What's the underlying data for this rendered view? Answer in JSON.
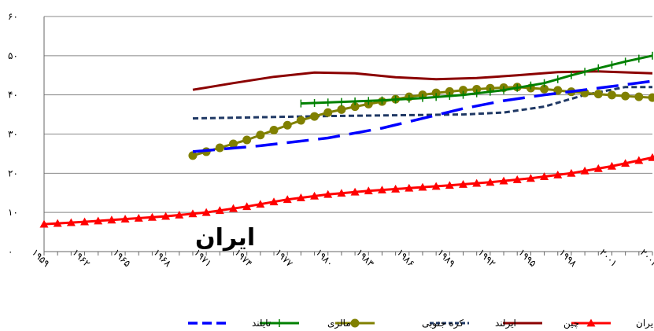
{
  "chart_data": {
    "type": "line",
    "x_start": 1959,
    "x_end": 2004,
    "ylim": [
      0,
      60
    ],
    "y_ticks": [
      0,
      10,
      20,
      30,
      40,
      50,
      60
    ],
    "y_tick_labels": [
      "۰",
      "۱۰",
      "۲۰",
      "۳۰",
      "۴۰",
      "۵۰",
      "۶۰"
    ],
    "x_tick_labels": [
      "۱۹۵۹",
      "۱۹۶۲",
      "۱۹۶۵",
      "۱۹۶۸",
      "۱۹۷۱",
      "۱۹۷۴",
      "۱۹۷۷",
      "۱۹۸۰",
      "۱۹۸۳",
      "۱۹۸۶",
      "۱۹۸۹",
      "۱۹۹۲",
      "۱۹۹۵",
      "۱۹۹۸",
      "۲۰۰۱",
      "۲۰۰۴"
    ],
    "x_tick_values": [
      1959,
      1962,
      1965,
      1968,
      1971,
      1974,
      1977,
      1980,
      1983,
      1986,
      1989,
      1992,
      1995,
      1998,
      2001,
      2004
    ],
    "grid": "horizontal",
    "legend_position": "bottom",
    "annotation": {
      "text": "ایران"
    },
    "series": [
      {
        "name": "ایران",
        "color": "#ff0000",
        "style": "solid-triangle",
        "points": [
          [
            1959,
            7.0
          ],
          [
            1962,
            7.6
          ],
          [
            1965,
            8.3
          ],
          [
            1968,
            9.0
          ],
          [
            1971,
            10.0
          ],
          [
            1974,
            11.5
          ],
          [
            1977,
            13.3
          ],
          [
            1980,
            14.6
          ],
          [
            1983,
            15.5
          ],
          [
            1986,
            16.2
          ],
          [
            1989,
            16.9
          ],
          [
            1992,
            17.7
          ],
          [
            1995,
            18.7
          ],
          [
            1998,
            20.0
          ],
          [
            2001,
            21.8
          ],
          [
            2004,
            24.0
          ]
        ]
      },
      {
        "name": "چین",
        "color": "#8b0000",
        "style": "solid",
        "points": [
          [
            1970,
            41.3
          ],
          [
            1973,
            43.0
          ],
          [
            1976,
            44.6
          ],
          [
            1979,
            45.7
          ],
          [
            1982,
            45.5
          ],
          [
            1985,
            44.5
          ],
          [
            1988,
            44.0
          ],
          [
            1991,
            44.3
          ],
          [
            1994,
            45.0
          ],
          [
            1997,
            45.8
          ],
          [
            2000,
            46.0
          ],
          [
            2004,
            45.5
          ]
        ]
      },
      {
        "name": "ایرلند",
        "color": "#1f3864",
        "style": "short-dash",
        "points": [
          [
            1970,
            34.0
          ],
          [
            1975,
            34.3
          ],
          [
            1980,
            34.6
          ],
          [
            1985,
            34.8
          ],
          [
            1990,
            35.0
          ],
          [
            1993,
            35.5
          ],
          [
            1996,
            37.0
          ],
          [
            1999,
            40.0
          ],
          [
            2002,
            42.0
          ],
          [
            2004,
            42.0
          ]
        ]
      },
      {
        "name": "کره جنوبی",
        "color": "#808000",
        "style": "solid-circle",
        "points": [
          [
            1970,
            24.5
          ],
          [
            1972,
            26.5
          ],
          [
            1974,
            28.5
          ],
          [
            1976,
            31.0
          ],
          [
            1978,
            33.5
          ],
          [
            1980,
            35.5
          ],
          [
            1982,
            37.0
          ],
          [
            1984,
            38.3
          ],
          [
            1986,
            39.5
          ],
          [
            1988,
            40.5
          ],
          [
            1990,
            41.2
          ],
          [
            1992,
            41.7
          ],
          [
            1994,
            42.0
          ],
          [
            1996,
            41.5
          ],
          [
            1998,
            40.8
          ],
          [
            2000,
            40.2
          ],
          [
            2002,
            39.7
          ],
          [
            2004,
            39.3
          ]
        ]
      },
      {
        "name": "مالزی",
        "color": "#008000",
        "style": "solid-plus",
        "points": [
          [
            1978,
            37.8
          ],
          [
            1981,
            38.2
          ],
          [
            1984,
            38.6
          ],
          [
            1987,
            39.2
          ],
          [
            1990,
            40.0
          ],
          [
            1993,
            41.2
          ],
          [
            1996,
            43.0
          ],
          [
            1998,
            45.0
          ],
          [
            2000,
            46.8
          ],
          [
            2002,
            48.5
          ],
          [
            2004,
            50.0
          ]
        ]
      },
      {
        "name": "تایلند",
        "color": "#0000ff",
        "style": "long-dash",
        "points": [
          [
            1970,
            25.5
          ],
          [
            1975,
            27.0
          ],
          [
            1980,
            29.0
          ],
          [
            1984,
            31.5
          ],
          [
            1987,
            34.0
          ],
          [
            1990,
            36.5
          ],
          [
            1993,
            38.5
          ],
          [
            1996,
            40.0
          ],
          [
            1999,
            41.3
          ],
          [
            2002,
            42.6
          ],
          [
            2004,
            43.5
          ]
        ]
      }
    ]
  }
}
